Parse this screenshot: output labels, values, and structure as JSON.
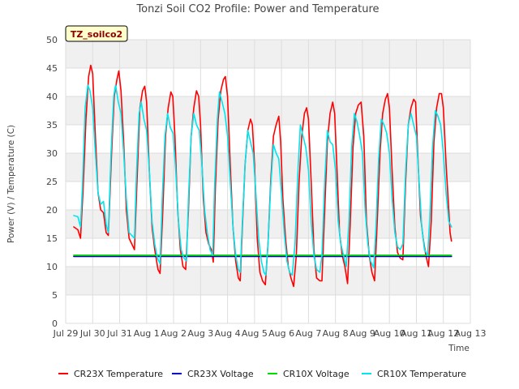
{
  "chart_data": {
    "type": "line",
    "title": "Tonzi Soil CO2 Profile: Power and Temperature",
    "xlabel": "Time",
    "ylabel": "Power (V) / Temperature (C)",
    "badge": "TZ_soilco2",
    "ylim": [
      0,
      50
    ],
    "xlim": [
      0,
      15
    ],
    "yticks": [
      0,
      5,
      10,
      15,
      20,
      25,
      30,
      35,
      40,
      45,
      50
    ],
    "xticks": [
      {
        "x": 0,
        "label": "Jul 29"
      },
      {
        "x": 1,
        "label": "Jul 30"
      },
      {
        "x": 2,
        "label": "Jul 31"
      },
      {
        "x": 3,
        "label": "Aug 1"
      },
      {
        "x": 4,
        "label": "Aug 2"
      },
      {
        "x": 5,
        "label": "Aug 3"
      },
      {
        "x": 6,
        "label": "Aug 4"
      },
      {
        "x": 7,
        "label": "Aug 5"
      },
      {
        "x": 8,
        "label": "Aug 6"
      },
      {
        "x": 9,
        "label": "Aug 7"
      },
      {
        "x": 10,
        "label": "Aug 8"
      },
      {
        "x": 11,
        "label": "Aug 9"
      },
      {
        "x": 12,
        "label": "Aug 10"
      },
      {
        "x": 13,
        "label": "Aug 11"
      },
      {
        "x": 14,
        "label": "Aug 12"
      },
      {
        "x": 15,
        "label": "Aug 13"
      }
    ],
    "grid": true,
    "legend_position": "bottom",
    "series": [
      {
        "name": "CR23X Temperature",
        "color": "#ff0000",
        "points": [
          [
            0.3,
            17.0
          ],
          [
            0.45,
            16.5
          ],
          [
            0.55,
            15.0
          ],
          [
            0.65,
            24.0
          ],
          [
            0.75,
            36.0
          ],
          [
            0.85,
            43.5
          ],
          [
            0.93,
            45.5
          ],
          [
            1.0,
            44.0
          ],
          [
            1.1,
            33.0
          ],
          [
            1.2,
            23.0
          ],
          [
            1.3,
            20.0
          ],
          [
            1.4,
            19.5
          ],
          [
            1.5,
            16.0
          ],
          [
            1.58,
            15.5
          ],
          [
            1.7,
            30.0
          ],
          [
            1.8,
            40.0
          ],
          [
            1.9,
            43.0
          ],
          [
            1.97,
            44.5
          ],
          [
            2.05,
            41.0
          ],
          [
            2.15,
            32.0
          ],
          [
            2.25,
            20.0
          ],
          [
            2.35,
            15.0
          ],
          [
            2.45,
            14.0
          ],
          [
            2.55,
            13.0
          ],
          [
            2.65,
            26.0
          ],
          [
            2.75,
            38.0
          ],
          [
            2.85,
            41.0
          ],
          [
            2.93,
            41.8
          ],
          [
            3.0,
            39.0
          ],
          [
            3.1,
            27.0
          ],
          [
            3.2,
            17.0
          ],
          [
            3.3,
            13.0
          ],
          [
            3.42,
            9.5
          ],
          [
            3.5,
            8.8
          ],
          [
            3.6,
            20.0
          ],
          [
            3.7,
            33.0
          ],
          [
            3.8,
            38.0
          ],
          [
            3.9,
            40.8
          ],
          [
            3.97,
            40.0
          ],
          [
            4.05,
            33.0
          ],
          [
            4.15,
            20.0
          ],
          [
            4.25,
            13.0
          ],
          [
            4.35,
            10.0
          ],
          [
            4.45,
            9.5
          ],
          [
            4.55,
            20.0
          ],
          [
            4.65,
            33.0
          ],
          [
            4.75,
            38.0
          ],
          [
            4.85,
            41.0
          ],
          [
            4.93,
            40.0
          ],
          [
            5.0,
            35.0
          ],
          [
            5.1,
            22.0
          ],
          [
            5.2,
            16.0
          ],
          [
            5.3,
            14.0
          ],
          [
            5.4,
            13.0
          ],
          [
            5.47,
            10.8
          ],
          [
            5.55,
            24.0
          ],
          [
            5.65,
            36.0
          ],
          [
            5.75,
            41.0
          ],
          [
            5.85,
            43.0
          ],
          [
            5.92,
            43.5
          ],
          [
            6.0,
            40.0
          ],
          [
            6.1,
            28.0
          ],
          [
            6.2,
            17.0
          ],
          [
            6.3,
            11.0
          ],
          [
            6.4,
            8.0
          ],
          [
            6.47,
            7.5
          ],
          [
            6.55,
            17.0
          ],
          [
            6.65,
            28.0
          ],
          [
            6.75,
            34.0
          ],
          [
            6.85,
            36.0
          ],
          [
            6.92,
            35.0
          ],
          [
            7.0,
            28.0
          ],
          [
            7.1,
            15.0
          ],
          [
            7.2,
            9.0
          ],
          [
            7.3,
            7.5
          ],
          [
            7.4,
            6.8
          ],
          [
            7.5,
            14.0
          ],
          [
            7.6,
            25.0
          ],
          [
            7.7,
            33.0
          ],
          [
            7.8,
            35.0
          ],
          [
            7.9,
            36.5
          ],
          [
            7.97,
            32.0
          ],
          [
            8.05,
            22.0
          ],
          [
            8.15,
            15.0
          ],
          [
            8.25,
            10.0
          ],
          [
            8.35,
            8.0
          ],
          [
            8.45,
            6.5
          ],
          [
            8.55,
            12.0
          ],
          [
            8.65,
            25.0
          ],
          [
            8.75,
            33.0
          ],
          [
            8.85,
            37.0
          ],
          [
            8.93,
            38.0
          ],
          [
            9.0,
            36.0
          ],
          [
            9.1,
            25.0
          ],
          [
            9.2,
            13.0
          ],
          [
            9.3,
            8.0
          ],
          [
            9.42,
            7.5
          ],
          [
            9.5,
            7.5
          ],
          [
            9.6,
            20.0
          ],
          [
            9.7,
            32.0
          ],
          [
            9.8,
            37.0
          ],
          [
            9.9,
            39.0
          ],
          [
            9.97,
            37.0
          ],
          [
            10.05,
            28.0
          ],
          [
            10.15,
            16.0
          ],
          [
            10.25,
            12.0
          ],
          [
            10.35,
            10.0
          ],
          [
            10.45,
            7.0
          ],
          [
            10.55,
            18.0
          ],
          [
            10.65,
            31.0
          ],
          [
            10.75,
            37.0
          ],
          [
            10.85,
            38.5
          ],
          [
            10.95,
            39.0
          ],
          [
            11.05,
            33.0
          ],
          [
            11.15,
            18.0
          ],
          [
            11.25,
            12.0
          ],
          [
            11.35,
            9.0
          ],
          [
            11.45,
            7.5
          ],
          [
            11.55,
            18.0
          ],
          [
            11.65,
            30.0
          ],
          [
            11.75,
            37.0
          ],
          [
            11.85,
            39.5
          ],
          [
            11.93,
            40.5
          ],
          [
            12.0,
            38.0
          ],
          [
            12.1,
            27.0
          ],
          [
            12.2,
            17.0
          ],
          [
            12.3,
            12.5
          ],
          [
            12.4,
            11.5
          ],
          [
            12.5,
            11.2
          ],
          [
            12.6,
            25.0
          ],
          [
            12.7,
            35.0
          ],
          [
            12.8,
            38.0
          ],
          [
            12.9,
            39.5
          ],
          [
            12.97,
            39.0
          ],
          [
            13.05,
            30.0
          ],
          [
            13.15,
            19.0
          ],
          [
            13.25,
            15.0
          ],
          [
            13.35,
            12.0
          ],
          [
            13.45,
            10.0
          ],
          [
            13.55,
            18.0
          ],
          [
            13.65,
            32.0
          ],
          [
            13.75,
            38.0
          ],
          [
            13.85,
            40.5
          ],
          [
            13.93,
            40.5
          ],
          [
            14.0,
            38.0
          ],
          [
            14.1,
            28.0
          ],
          [
            14.2,
            20.0
          ],
          [
            14.25,
            16.0
          ],
          [
            14.3,
            14.5
          ]
        ]
      },
      {
        "name": "CR23X Voltage",
        "color": "#0000cc",
        "points": [
          [
            0.3,
            11.8
          ],
          [
            14.3,
            11.8
          ]
        ]
      },
      {
        "name": "CR10X Voltage",
        "color": "#00dd00",
        "points": [
          [
            0.3,
            12.0
          ],
          [
            14.3,
            12.0
          ]
        ]
      },
      {
        "name": "CR10X Temperature",
        "color": "#00e5ee",
        "points": [
          [
            0.3,
            19.0
          ],
          [
            0.45,
            18.8
          ],
          [
            0.55,
            17.0
          ],
          [
            0.62,
            24.0
          ],
          [
            0.72,
            38.0
          ],
          [
            0.82,
            42.0
          ],
          [
            0.9,
            41.0
          ],
          [
            1.0,
            38.0
          ],
          [
            1.1,
            30.0
          ],
          [
            1.2,
            23.0
          ],
          [
            1.3,
            21.0
          ],
          [
            1.4,
            21.5
          ],
          [
            1.5,
            17.5
          ],
          [
            1.58,
            16.0
          ],
          [
            1.68,
            30.0
          ],
          [
            1.78,
            40.0
          ],
          [
            1.85,
            42.0
          ],
          [
            1.95,
            39.0
          ],
          [
            2.05,
            37.0
          ],
          [
            2.15,
            30.0
          ],
          [
            2.25,
            22.0
          ],
          [
            2.35,
            16.0
          ],
          [
            2.45,
            15.5
          ],
          [
            2.55,
            15.0
          ],
          [
            2.62,
            26.0
          ],
          [
            2.72,
            37.0
          ],
          [
            2.8,
            39.0
          ],
          [
            2.9,
            36.0
          ],
          [
            3.0,
            34.0
          ],
          [
            3.1,
            27.0
          ],
          [
            3.2,
            18.0
          ],
          [
            3.3,
            14.0
          ],
          [
            3.4,
            11.5
          ],
          [
            3.5,
            10.5
          ],
          [
            3.58,
            22.0
          ],
          [
            3.68,
            33.0
          ],
          [
            3.78,
            37.0
          ],
          [
            3.88,
            34.5
          ],
          [
            3.98,
            33.5
          ],
          [
            4.08,
            27.0
          ],
          [
            4.18,
            18.0
          ],
          [
            4.28,
            13.0
          ],
          [
            4.38,
            11.5
          ],
          [
            4.48,
            11.0
          ],
          [
            4.55,
            22.0
          ],
          [
            4.65,
            33.0
          ],
          [
            4.75,
            37.0
          ],
          [
            4.85,
            35.0
          ],
          [
            4.95,
            34.0
          ],
          [
            5.05,
            28.0
          ],
          [
            5.15,
            20.0
          ],
          [
            5.25,
            16.0
          ],
          [
            5.35,
            13.0
          ],
          [
            5.45,
            12.0
          ],
          [
            5.52,
            24.0
          ],
          [
            5.62,
            36.0
          ],
          [
            5.7,
            40.8
          ],
          [
            5.8,
            39.0
          ],
          [
            5.9,
            37.0
          ],
          [
            6.0,
            33.0
          ],
          [
            6.1,
            25.0
          ],
          [
            6.2,
            17.0
          ],
          [
            6.3,
            12.0
          ],
          [
            6.4,
            9.5
          ],
          [
            6.47,
            9.0
          ],
          [
            6.55,
            18.0
          ],
          [
            6.65,
            28.0
          ],
          [
            6.75,
            34.0
          ],
          [
            6.85,
            32.0
          ],
          [
            6.95,
            30.0
          ],
          [
            7.05,
            23.0
          ],
          [
            7.15,
            15.0
          ],
          [
            7.25,
            11.0
          ],
          [
            7.35,
            9.0
          ],
          [
            7.42,
            8.5
          ],
          [
            7.5,
            14.0
          ],
          [
            7.6,
            24.0
          ],
          [
            7.7,
            31.5
          ],
          [
            7.8,
            30.0
          ],
          [
            7.9,
            29.0
          ],
          [
            8.0,
            23.0
          ],
          [
            8.1,
            16.0
          ],
          [
            8.2,
            11.0
          ],
          [
            8.3,
            9.0
          ],
          [
            8.4,
            8.5
          ],
          [
            8.5,
            14.0
          ],
          [
            8.6,
            26.0
          ],
          [
            8.7,
            35.0
          ],
          [
            8.8,
            33.0
          ],
          [
            8.9,
            31.0
          ],
          [
            9.0,
            27.0
          ],
          [
            9.1,
            18.0
          ],
          [
            9.2,
            12.0
          ],
          [
            9.3,
            9.5
          ],
          [
            9.42,
            9.0
          ],
          [
            9.5,
            12.0
          ],
          [
            9.6,
            25.0
          ],
          [
            9.7,
            34.0
          ],
          [
            9.8,
            32.0
          ],
          [
            9.9,
            31.5
          ],
          [
            10.0,
            27.0
          ],
          [
            10.1,
            18.0
          ],
          [
            10.2,
            14.0
          ],
          [
            10.3,
            12.0
          ],
          [
            10.4,
            10.0
          ],
          [
            10.5,
            18.0
          ],
          [
            10.6,
            31.0
          ],
          [
            10.7,
            37.0
          ],
          [
            10.8,
            35.5
          ],
          [
            10.9,
            33.0
          ],
          [
            11.0,
            30.0
          ],
          [
            11.1,
            20.0
          ],
          [
            11.2,
            14.0
          ],
          [
            11.3,
            11.0
          ],
          [
            11.42,
            9.8
          ],
          [
            11.5,
            17.0
          ],
          [
            11.6,
            29.0
          ],
          [
            11.7,
            36.0
          ],
          [
            11.8,
            35.0
          ],
          [
            11.9,
            33.5
          ],
          [
            12.0,
            30.0
          ],
          [
            12.1,
            22.0
          ],
          [
            12.2,
            16.0
          ],
          [
            12.3,
            13.5
          ],
          [
            12.4,
            13.0
          ],
          [
            12.5,
            14.0
          ],
          [
            12.6,
            27.0
          ],
          [
            12.7,
            35.0
          ],
          [
            12.8,
            37.0
          ],
          [
            12.9,
            35.0
          ],
          [
            13.0,
            33.0
          ],
          [
            13.1,
            25.0
          ],
          [
            13.2,
            17.0
          ],
          [
            13.3,
            13.0
          ],
          [
            13.42,
            12.0
          ],
          [
            13.5,
            19.0
          ],
          [
            13.6,
            31.0
          ],
          [
            13.7,
            37.5
          ],
          [
            13.8,
            36.5
          ],
          [
            13.9,
            35.0
          ],
          [
            14.0,
            30.0
          ],
          [
            14.1,
            23.0
          ],
          [
            14.2,
            18.0
          ],
          [
            14.3,
            17.0
          ]
        ]
      }
    ]
  }
}
